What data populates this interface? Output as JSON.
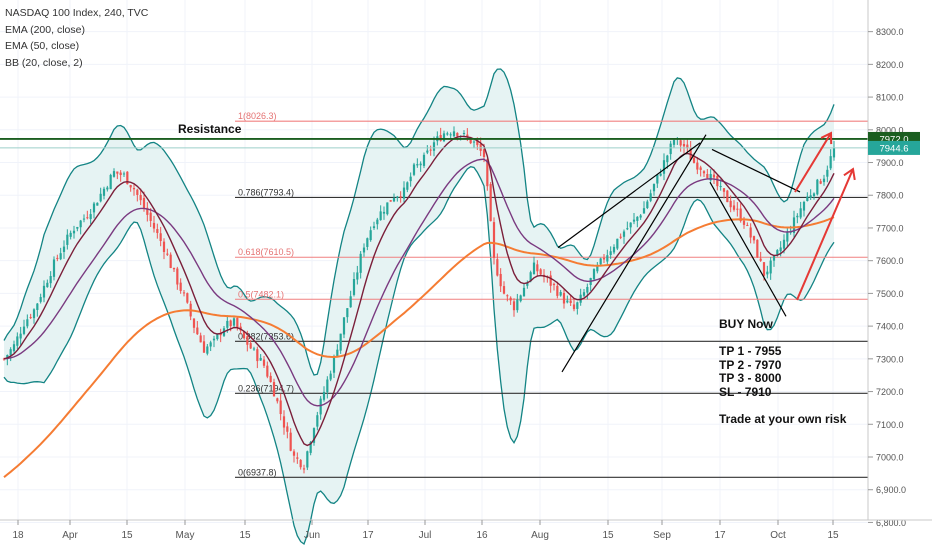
{
  "legend": {
    "symbol": "NASDAQ 100 Index, 240, TVC",
    "ema200": "EMA (200, close)",
    "ema50": "EMA (50, close)",
    "bb": "BB (20, close, 2)"
  },
  "resistance_label": "Resistance",
  "trade_note": {
    "line1": "BUY Now",
    "line2": "",
    "line3": "TP 1 - 7955",
    "line4": "TP 2 - 7970",
    "line5": "TP 3 - 8000",
    "line6": "SL - 7910",
    "line7": "",
    "line8": "Trade at your own risk"
  },
  "colors": {
    "candle_up": "#26a69a",
    "candle_down": "#ef5350",
    "bb_line": "#138484",
    "bb_fill": "#e6f3f3",
    "ema200": "#f57c33",
    "ema50": "#7a3a80",
    "mid": "#7b1f3a",
    "fib_red": "#f08080",
    "fib_black": "#333333",
    "resistance": "#1b5e20",
    "arrow": "#e53935"
  },
  "chart_data": {
    "type": "candlestick",
    "yticks": [
      6800,
      6900,
      7000,
      7100,
      7200,
      7300,
      7400,
      7500,
      7600,
      7700,
      7800,
      7900,
      8000,
      8100,
      8200,
      8300
    ],
    "ytick_labels": [
      "6,800.0",
      "6,900.0",
      "7000.0",
      "7100.0",
      "7200.0",
      "7300.0",
      "7400.0",
      "7500.0",
      "7600.0",
      "7700.0",
      "7800.0",
      "7900.0",
      "8000.0",
      "8100.0",
      "8200.0",
      "8300.0"
    ],
    "xticks": [
      "18",
      "Apr",
      "15",
      "May",
      "15",
      "Jun",
      "17",
      "Jul",
      "16",
      "Aug",
      "15",
      "Sep",
      "17",
      "Oct",
      "15"
    ],
    "price_labels": [
      {
        "value": 7972.0,
        "label": "7972.0",
        "color": "#1b5e20"
      },
      {
        "value": 7944.6,
        "label": "7944.6",
        "color": "#26a69a"
      }
    ],
    "fib_levels": [
      {
        "level": "1",
        "value": 8026.3,
        "label": "1(8026.3)",
        "color": "#f08080"
      },
      {
        "level": "0.786",
        "value": 7793.4,
        "label": "0.786(7793.4)",
        "color": "#333333"
      },
      {
        "level": "0.618",
        "value": 7610.5,
        "label": "0.618(7610.5)",
        "color": "#f08080"
      },
      {
        "level": "0.5",
        "value": 7482.1,
        "label": "0.5(7482.1)",
        "color": "#f08080"
      },
      {
        "level": "0.382",
        "value": 7353.6,
        "label": "0.382(7353.6)",
        "color": "#333333"
      },
      {
        "level": "0.236",
        "value": 7194.7,
        "label": "0.236(7194.7)",
        "color": "#333333"
      },
      {
        "level": "0",
        "value": 6937.8,
        "label": "0(6937.8)",
        "color": "#333333"
      }
    ],
    "resistance": 7972.0,
    "close_series": [
      7300,
      7340,
      7410,
      7450,
      7520,
      7590,
      7650,
      7700,
      7730,
      7770,
      7820,
      7870,
      7860,
      7820,
      7760,
      7700,
      7640,
      7560,
      7490,
      7400,
      7330,
      7350,
      7400,
      7410,
      7360,
      7320,
      7280,
      7200,
      7100,
      7000,
      6975,
      7100,
      7200,
      7300,
      7420,
      7530,
      7650,
      7720,
      7760,
      7800,
      7810,
      7880,
      7910,
      7960,
      7990,
      8000,
      7980,
      7960,
      7920,
      7600,
      7500,
      7460,
      7520,
      7580,
      7550,
      7520,
      7480,
      7450,
      7500,
      7560,
      7610,
      7650,
      7690,
      7720,
      7760,
      7830,
      7900,
      7970,
      7950,
      7900,
      7880,
      7840,
      7800,
      7760,
      7720,
      7650,
      7560,
      7600,
      7660,
      7720,
      7780,
      7820,
      7860,
      7940
    ]
  }
}
